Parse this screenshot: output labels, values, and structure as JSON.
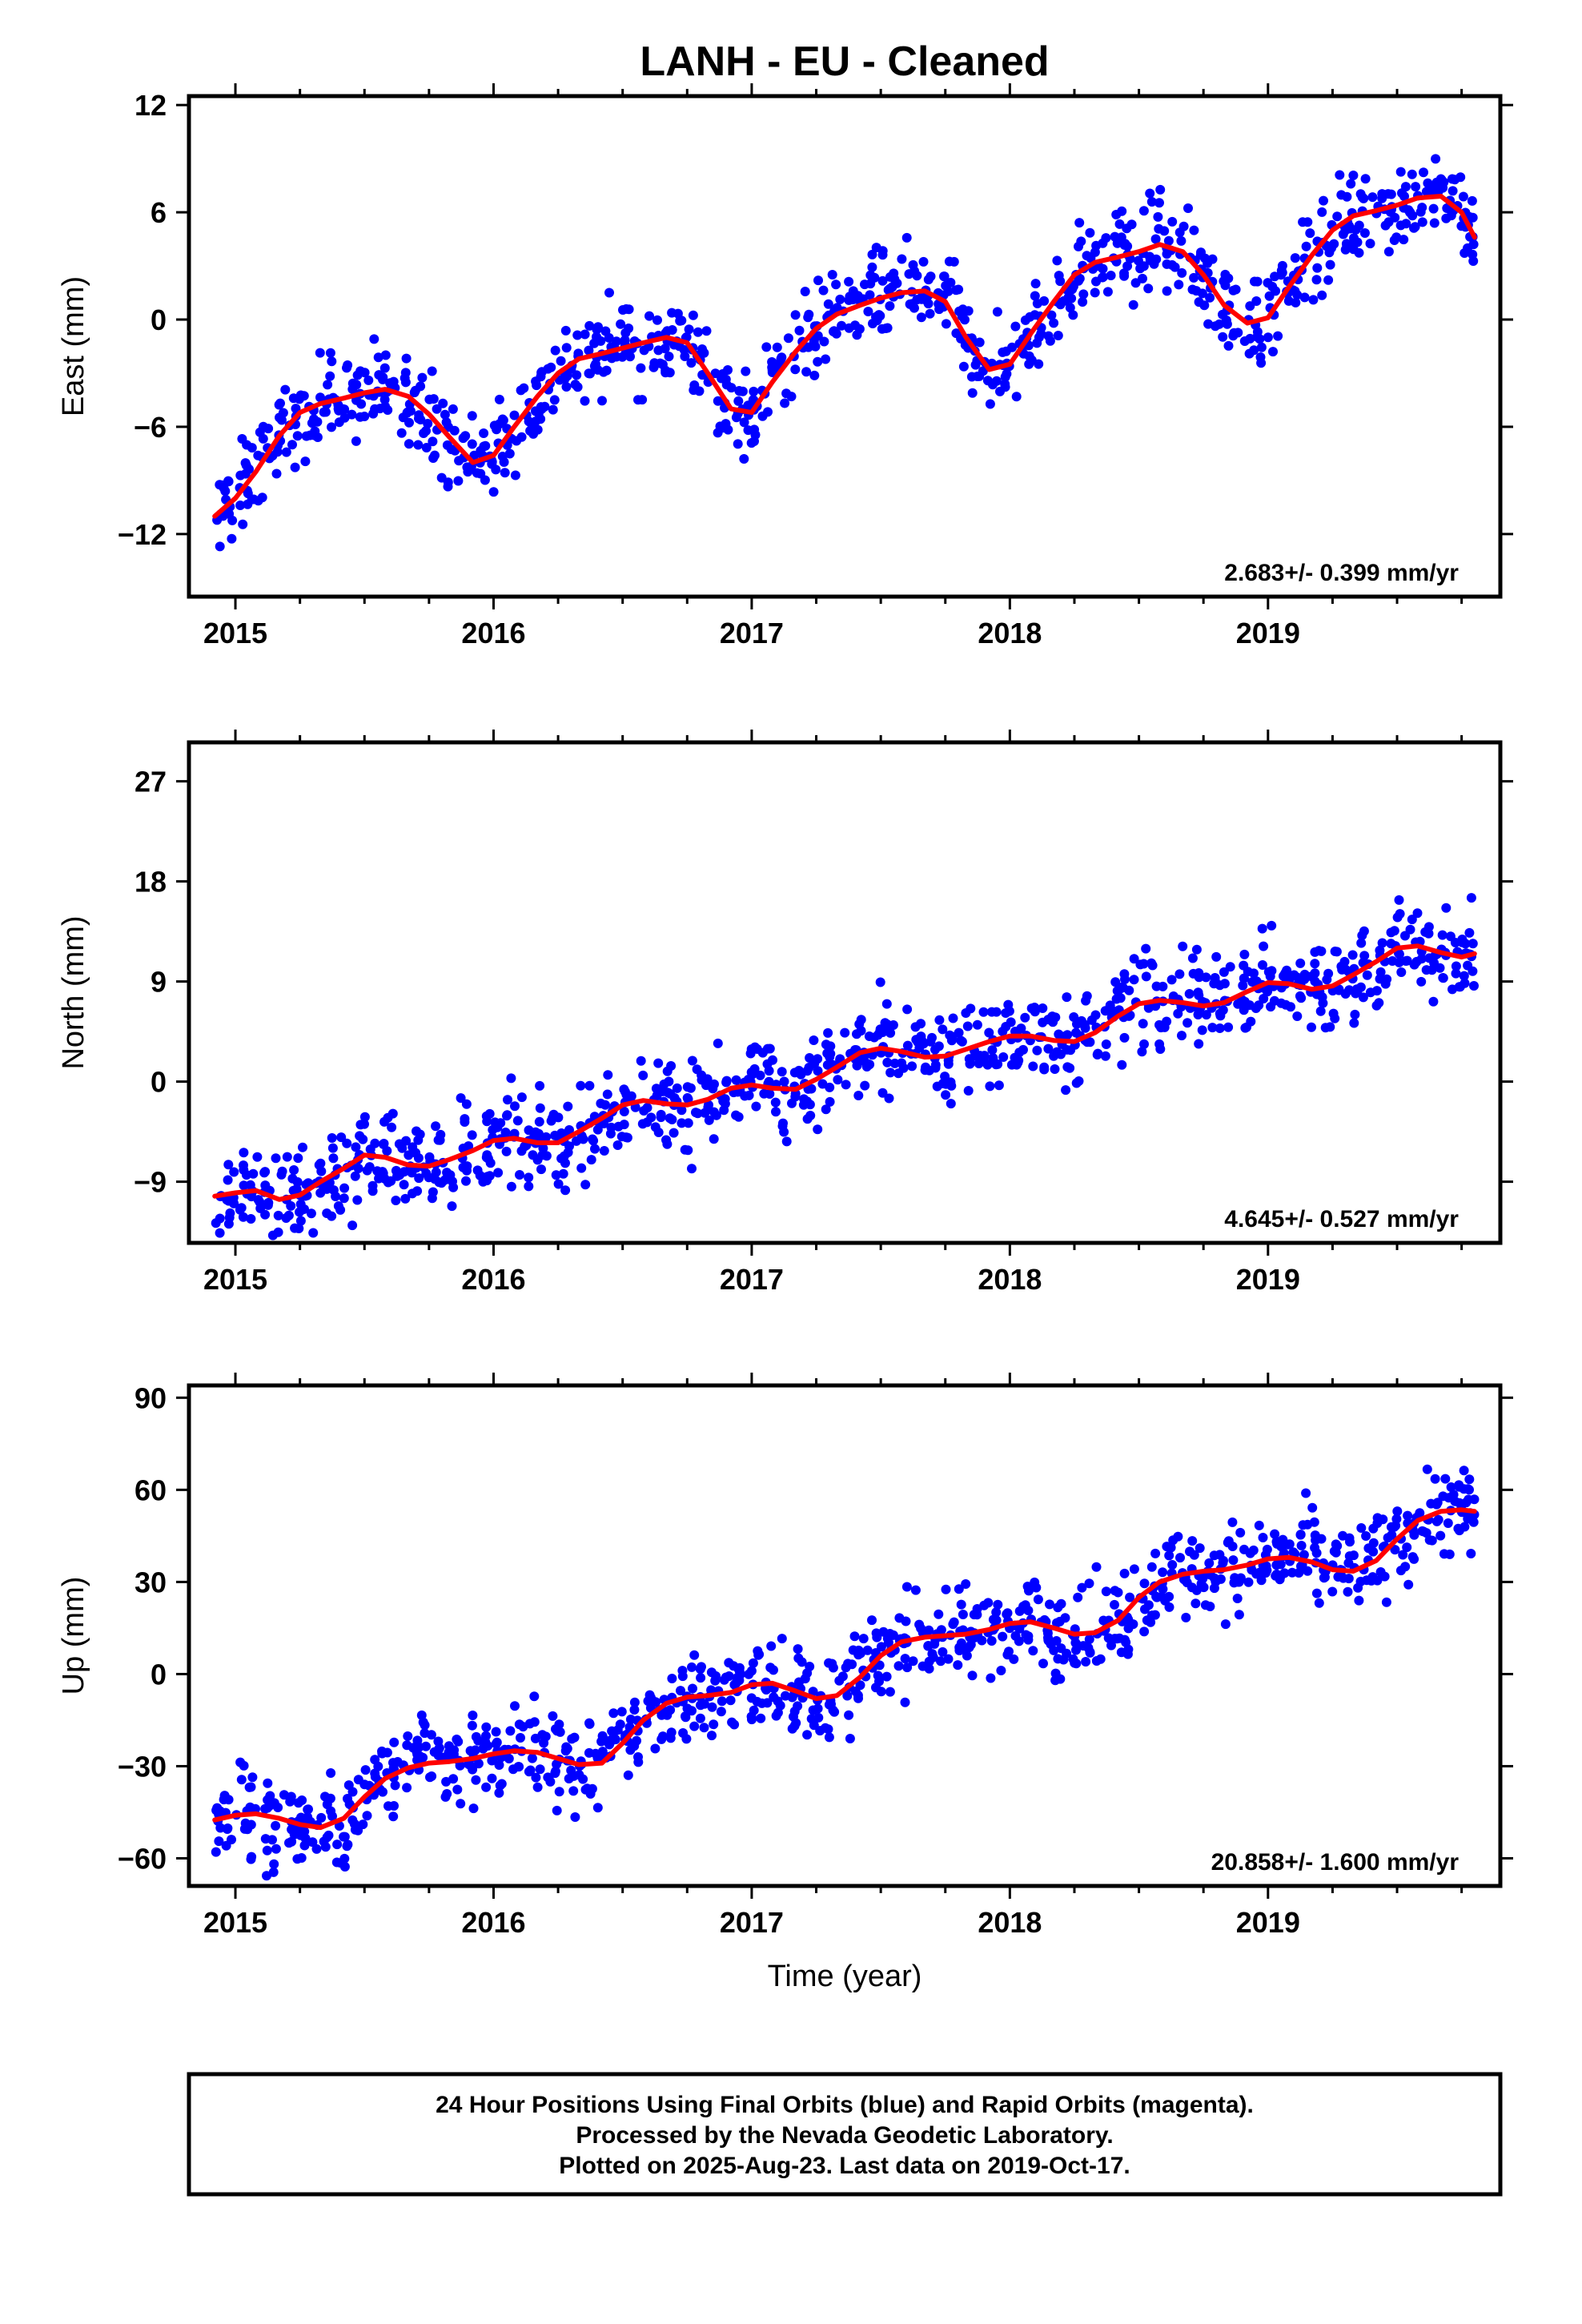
{
  "title": "LANH  - EU - Cleaned",
  "xlabel": "Time (year)",
  "footer": {
    "line1": "24 Hour Positions Using Final Orbits (blue) and Rapid Orbits (magenta).",
    "line2": "Processed by the Nevada Geodetic Laboratory.",
    "line3": "Plotted on 2025-Aug-23. Last data on 2019-Oct-17."
  },
  "colors": {
    "points": "#0000ff",
    "fit": "#ff0000",
    "frame": "#000000"
  },
  "chart_data": [
    {
      "type": "scatter",
      "ylabel": "East (mm)",
      "rate_text": "2.683+/- 0.399 mm/yr",
      "xlim": [
        2014.82,
        2019.9
      ],
      "ylim": [
        -15.5,
        12.5
      ],
      "xticks": [
        2015,
        2016,
        2017,
        2018,
        2019
      ],
      "yticks": [
        12,
        6,
        0,
        -6,
        -12
      ],
      "ytick_labels": [
        "12",
        "6",
        "0",
        "−6",
        "−12"
      ],
      "series": [
        {
          "values": [
            [
              2014.92,
              -11.0
            ],
            [
              2015.0,
              -10.0
            ],
            [
              2015.08,
              -8.5
            ],
            [
              2015.17,
              -6.5
            ],
            [
              2015.25,
              -5.2
            ],
            [
              2015.33,
              -4.7
            ],
            [
              2015.42,
              -4.4
            ],
            [
              2015.5,
              -4.1
            ],
            [
              2015.58,
              -3.9
            ],
            [
              2015.67,
              -4.3
            ],
            [
              2015.75,
              -5.3
            ],
            [
              2015.83,
              -6.6
            ],
            [
              2015.92,
              -8.0
            ],
            [
              2016.0,
              -7.6
            ],
            [
              2016.08,
              -6.0
            ],
            [
              2016.17,
              -4.3
            ],
            [
              2016.25,
              -3.0
            ],
            [
              2016.33,
              -2.2
            ],
            [
              2016.42,
              -1.9
            ],
            [
              2016.5,
              -1.6
            ],
            [
              2016.58,
              -1.3
            ],
            [
              2016.67,
              -1.0
            ],
            [
              2016.75,
              -1.3
            ],
            [
              2016.83,
              -3.0
            ],
            [
              2016.92,
              -5.0
            ],
            [
              2017.0,
              -5.2
            ],
            [
              2017.08,
              -3.5
            ],
            [
              2017.17,
              -1.8
            ],
            [
              2017.25,
              -0.5
            ],
            [
              2017.33,
              0.3
            ],
            [
              2017.42,
              0.8
            ],
            [
              2017.5,
              1.2
            ],
            [
              2017.58,
              1.5
            ],
            [
              2017.67,
              1.6
            ],
            [
              2017.75,
              1.0
            ],
            [
              2017.83,
              -1.0
            ],
            [
              2017.92,
              -2.8
            ],
            [
              2018.0,
              -2.5
            ],
            [
              2018.08,
              -0.8
            ],
            [
              2018.17,
              1.0
            ],
            [
              2018.25,
              2.5
            ],
            [
              2018.33,
              3.2
            ],
            [
              2018.42,
              3.5
            ],
            [
              2018.5,
              3.8
            ],
            [
              2018.58,
              4.2
            ],
            [
              2018.67,
              3.8
            ],
            [
              2018.75,
              2.5
            ],
            [
              2018.83,
              0.8
            ],
            [
              2018.92,
              -0.2
            ],
            [
              2019.0,
              0.1
            ],
            [
              2019.08,
              1.8
            ],
            [
              2019.17,
              3.6
            ],
            [
              2019.25,
              5.0
            ],
            [
              2019.33,
              5.8
            ],
            [
              2019.42,
              6.1
            ],
            [
              2019.5,
              6.4
            ],
            [
              2019.58,
              6.8
            ],
            [
              2019.67,
              6.9
            ],
            [
              2019.75,
              6.0
            ],
            [
              2019.8,
              4.6
            ]
          ]
        }
      ]
    },
    {
      "type": "scatter",
      "ylabel": "North (mm)",
      "rate_text": "4.645+/- 0.527 mm/yr",
      "xlim": [
        2014.82,
        2019.9
      ],
      "ylim": [
        -14.5,
        30.5
      ],
      "xticks": [
        2015,
        2016,
        2017,
        2018,
        2019
      ],
      "yticks": [
        27,
        18,
        9,
        0,
        -9
      ],
      "ytick_labels": [
        "27",
        "18",
        "9",
        "0",
        "−9"
      ],
      "series": [
        {
          "values": [
            [
              2014.92,
              -10.3
            ],
            [
              2015.0,
              -10.0
            ],
            [
              2015.08,
              -9.8
            ],
            [
              2015.17,
              -10.6
            ],
            [
              2015.25,
              -10.2
            ],
            [
              2015.33,
              -9.0
            ],
            [
              2015.42,
              -7.8
            ],
            [
              2015.5,
              -6.6
            ],
            [
              2015.58,
              -6.8
            ],
            [
              2015.67,
              -7.5
            ],
            [
              2015.75,
              -7.6
            ],
            [
              2015.83,
              -7.0
            ],
            [
              2015.92,
              -6.2
            ],
            [
              2016.0,
              -5.3
            ],
            [
              2016.08,
              -5.1
            ],
            [
              2016.17,
              -5.5
            ],
            [
              2016.25,
              -5.5
            ],
            [
              2016.33,
              -4.5
            ],
            [
              2016.42,
              -3.3
            ],
            [
              2016.5,
              -2.1
            ],
            [
              2016.58,
              -1.7
            ],
            [
              2016.67,
              -2.0
            ],
            [
              2016.75,
              -2.1
            ],
            [
              2016.83,
              -1.6
            ],
            [
              2016.92,
              -0.6
            ],
            [
              2017.0,
              -0.3
            ],
            [
              2017.08,
              -0.6
            ],
            [
              2017.17,
              -0.7
            ],
            [
              2017.25,
              0.2
            ],
            [
              2017.33,
              1.3
            ],
            [
              2017.42,
              2.6
            ],
            [
              2017.5,
              3.0
            ],
            [
              2017.58,
              2.7
            ],
            [
              2017.67,
              2.2
            ],
            [
              2017.75,
              2.3
            ],
            [
              2017.83,
              2.9
            ],
            [
              2017.92,
              3.6
            ],
            [
              2018.0,
              4.1
            ],
            [
              2018.08,
              4.1
            ],
            [
              2018.17,
              3.7
            ],
            [
              2018.25,
              3.6
            ],
            [
              2018.33,
              4.4
            ],
            [
              2018.42,
              5.9
            ],
            [
              2018.5,
              7.0
            ],
            [
              2018.58,
              7.3
            ],
            [
              2018.67,
              7.1
            ],
            [
              2018.75,
              6.8
            ],
            [
              2018.83,
              7.1
            ],
            [
              2018.92,
              8.1
            ],
            [
              2019.0,
              8.9
            ],
            [
              2019.08,
              8.8
            ],
            [
              2019.17,
              8.3
            ],
            [
              2019.25,
              8.6
            ],
            [
              2019.33,
              9.6
            ],
            [
              2019.42,
              10.8
            ],
            [
              2019.5,
              12.0
            ],
            [
              2019.58,
              12.2
            ],
            [
              2019.67,
              11.6
            ],
            [
              2019.75,
              11.2
            ],
            [
              2019.8,
              11.5
            ]
          ]
        }
      ]
    },
    {
      "type": "scatter",
      "ylabel": "Up (mm)",
      "rate_text": "20.858+/- 1.600 mm/yr",
      "xlim": [
        2014.82,
        2019.9
      ],
      "ylim": [
        -69,
        94
      ],
      "xticks": [
        2015,
        2016,
        2017,
        2018,
        2019
      ],
      "yticks": [
        90,
        60,
        30,
        0,
        -30,
        -60
      ],
      "ytick_labels": [
        "90",
        "60",
        "30",
        "0",
        "−30",
        "−60"
      ],
      "series": [
        {
          "values": [
            [
              2014.92,
              -47.5
            ],
            [
              2015.0,
              -46.0
            ],
            [
              2015.08,
              -45.5
            ],
            [
              2015.17,
              -47.0
            ],
            [
              2015.25,
              -49.0
            ],
            [
              2015.33,
              -50.0
            ],
            [
              2015.42,
              -47.0
            ],
            [
              2015.5,
              -40.0
            ],
            [
              2015.58,
              -34.0
            ],
            [
              2015.67,
              -30.5
            ],
            [
              2015.75,
              -29.0
            ],
            [
              2015.83,
              -28.5
            ],
            [
              2015.92,
              -27.5
            ],
            [
              2016.0,
              -26.0
            ],
            [
              2016.08,
              -25.0
            ],
            [
              2016.17,
              -25.5
            ],
            [
              2016.25,
              -27.5
            ],
            [
              2016.33,
              -29.5
            ],
            [
              2016.42,
              -29.0
            ],
            [
              2016.5,
              -22.5
            ],
            [
              2016.58,
              -15.0
            ],
            [
              2016.67,
              -9.5
            ],
            [
              2016.75,
              -7.5
            ],
            [
              2016.83,
              -7.0
            ],
            [
              2016.92,
              -6.0
            ],
            [
              2017.0,
              -3.5
            ],
            [
              2017.08,
              -3.0
            ],
            [
              2017.17,
              -5.5
            ],
            [
              2017.25,
              -8.0
            ],
            [
              2017.33,
              -7.0
            ],
            [
              2017.42,
              -1.0
            ],
            [
              2017.5,
              6.0
            ],
            [
              2017.58,
              10.5
            ],
            [
              2017.67,
              12.0
            ],
            [
              2017.75,
              12.5
            ],
            [
              2017.83,
              13.0
            ],
            [
              2017.92,
              14.5
            ],
            [
              2018.0,
              16.5
            ],
            [
              2018.08,
              17.0
            ],
            [
              2018.17,
              15.0
            ],
            [
              2018.25,
              13.0
            ],
            [
              2018.33,
              13.5
            ],
            [
              2018.42,
              17.5
            ],
            [
              2018.5,
              25.0
            ],
            [
              2018.58,
              30.0
            ],
            [
              2018.67,
              32.5
            ],
            [
              2018.75,
              33.5
            ],
            [
              2018.83,
              34.0
            ],
            [
              2018.92,
              35.5
            ],
            [
              2019.0,
              37.5
            ],
            [
              2019.08,
              38.0
            ],
            [
              2019.17,
              36.5
            ],
            [
              2019.25,
              34.0
            ],
            [
              2019.33,
              33.5
            ],
            [
              2019.42,
              37.0
            ],
            [
              2019.5,
              44.0
            ],
            [
              2019.58,
              50.0
            ],
            [
              2019.67,
              53.0
            ],
            [
              2019.75,
              53.5
            ],
            [
              2019.8,
              53.0
            ]
          ]
        }
      ]
    }
  ]
}
